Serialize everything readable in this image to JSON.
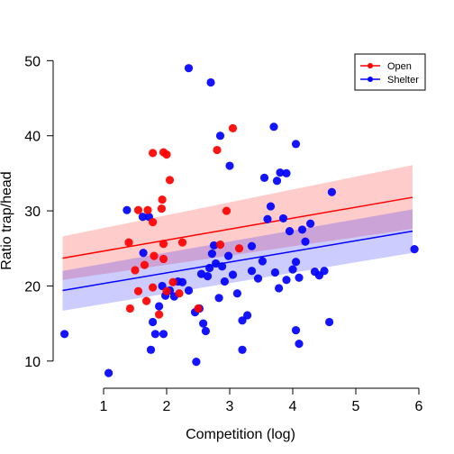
{
  "chart_data": {
    "type": "scatter",
    "title": "",
    "xlabel": "Competition (log)",
    "ylabel": "Ratio trap/head",
    "xlim": [
      0.2,
      6.1
    ],
    "ylim": [
      6.5,
      51
    ],
    "xticks": [
      1,
      2,
      3,
      4,
      5,
      6
    ],
    "yticks": [
      10,
      20,
      30,
      40,
      50
    ],
    "grid": false,
    "legend": {
      "position": "top-right",
      "entries": [
        "Open",
        "Shelter"
      ]
    },
    "series": [
      {
        "name": "Open",
        "color": "#ff0000",
        "band_color": "#ffb3b3",
        "fit": {
          "x": [
            0.35,
            5.9
          ],
          "y": [
            23.7,
            31.8
          ]
        },
        "band": {
          "x": [
            0.35,
            5.9
          ],
          "upper": [
            26.6,
            36.1
          ],
          "lower": [
            20.8,
            27.6
          ]
        },
        "x": [
          1.78,
          1.95,
          2.0,
          2.05,
          1.93,
          2.8,
          3.05,
          1.4,
          1.55,
          1.7,
          1.78,
          1.92,
          1.95,
          1.8,
          1.95,
          2.25,
          1.5,
          1.65,
          1.78,
          1.88,
          2.0,
          2.5,
          2.85,
          2.95,
          3.15,
          1.42,
          1.55,
          1.68,
          2.1,
          2.2
        ],
        "y": [
          37.7,
          37.8,
          37.5,
          34.1,
          31.5,
          38.1,
          41.0,
          25.8,
          30.1,
          30.1,
          28.5,
          30.3,
          25.6,
          24.0,
          23.6,
          25.8,
          22.1,
          22.8,
          19.8,
          16.2,
          19.3,
          17.0,
          25.5,
          30.0,
          25.0,
          17.0,
          19.3,
          18.0,
          20.5,
          19.0
        ]
      },
      {
        "name": "Shelter",
        "color": "#0000ff",
        "band_color": "#b3b3ff",
        "fit": {
          "x": [
            0.35,
            5.9
          ],
          "y": [
            19.4,
            27.3
          ]
        },
        "band": {
          "x": [
            0.35,
            5.9
          ],
          "upper": [
            22.0,
            30.2
          ],
          "lower": [
            16.7,
            24.4
          ]
        },
        "x": [
          2.35,
          2.7,
          2.85,
          3.0,
          3.7,
          4.05,
          1.08,
          2.47,
          0.38,
          1.37,
          1.63,
          1.72,
          1.78,
          1.82,
          1.88,
          1.93,
          1.98,
          2.05,
          2.12,
          2.18,
          2.25,
          2.35,
          2.45,
          2.52,
          2.58,
          2.62,
          2.68,
          2.72,
          2.78,
          2.83,
          2.88,
          2.92,
          2.98,
          3.05,
          3.12,
          3.2,
          3.28,
          3.35,
          3.45,
          3.52,
          3.6,
          3.65,
          3.72,
          3.78,
          3.85,
          3.9,
          3.95,
          4.0,
          4.05,
          4.1,
          4.15,
          4.2,
          4.28,
          4.35,
          4.42,
          4.5,
          4.62,
          4.58,
          5.93,
          4.05,
          3.8,
          3.55,
          2.75,
          1.95,
          1.62,
          2.55,
          1.75,
          3.35,
          2.65,
          3.2,
          4.1,
          3.75,
          3.9
        ],
        "y": [
          49.0,
          47.1,
          40.0,
          36.0,
          41.2,
          38.9,
          8.4,
          9.9,
          13.6,
          30.1,
          24.4,
          29.2,
          15.2,
          13.6,
          17.3,
          20.0,
          18.7,
          19.4,
          18.6,
          20.6,
          20.5,
          19.4,
          16.5,
          17.0,
          15.0,
          14.0,
          22.4,
          24.3,
          23.0,
          18.4,
          22.6,
          20.6,
          24.0,
          21.5,
          19.0,
          15.4,
          16.1,
          25.3,
          21.0,
          23.3,
          28.9,
          30.6,
          21.8,
          19.7,
          29.0,
          20.8,
          27.3,
          22.2,
          23.2,
          21.1,
          27.5,
          25.9,
          28.3,
          21.9,
          21.4,
          22.0,
          32.5,
          15.2,
          24.9,
          14.1,
          35.1,
          34.4,
          25.4,
          13.6,
          29.2,
          21.6,
          11.5,
          22.0,
          21.3,
          11.5,
          12.3,
          34.0,
          35.0
        ]
      }
    ]
  }
}
